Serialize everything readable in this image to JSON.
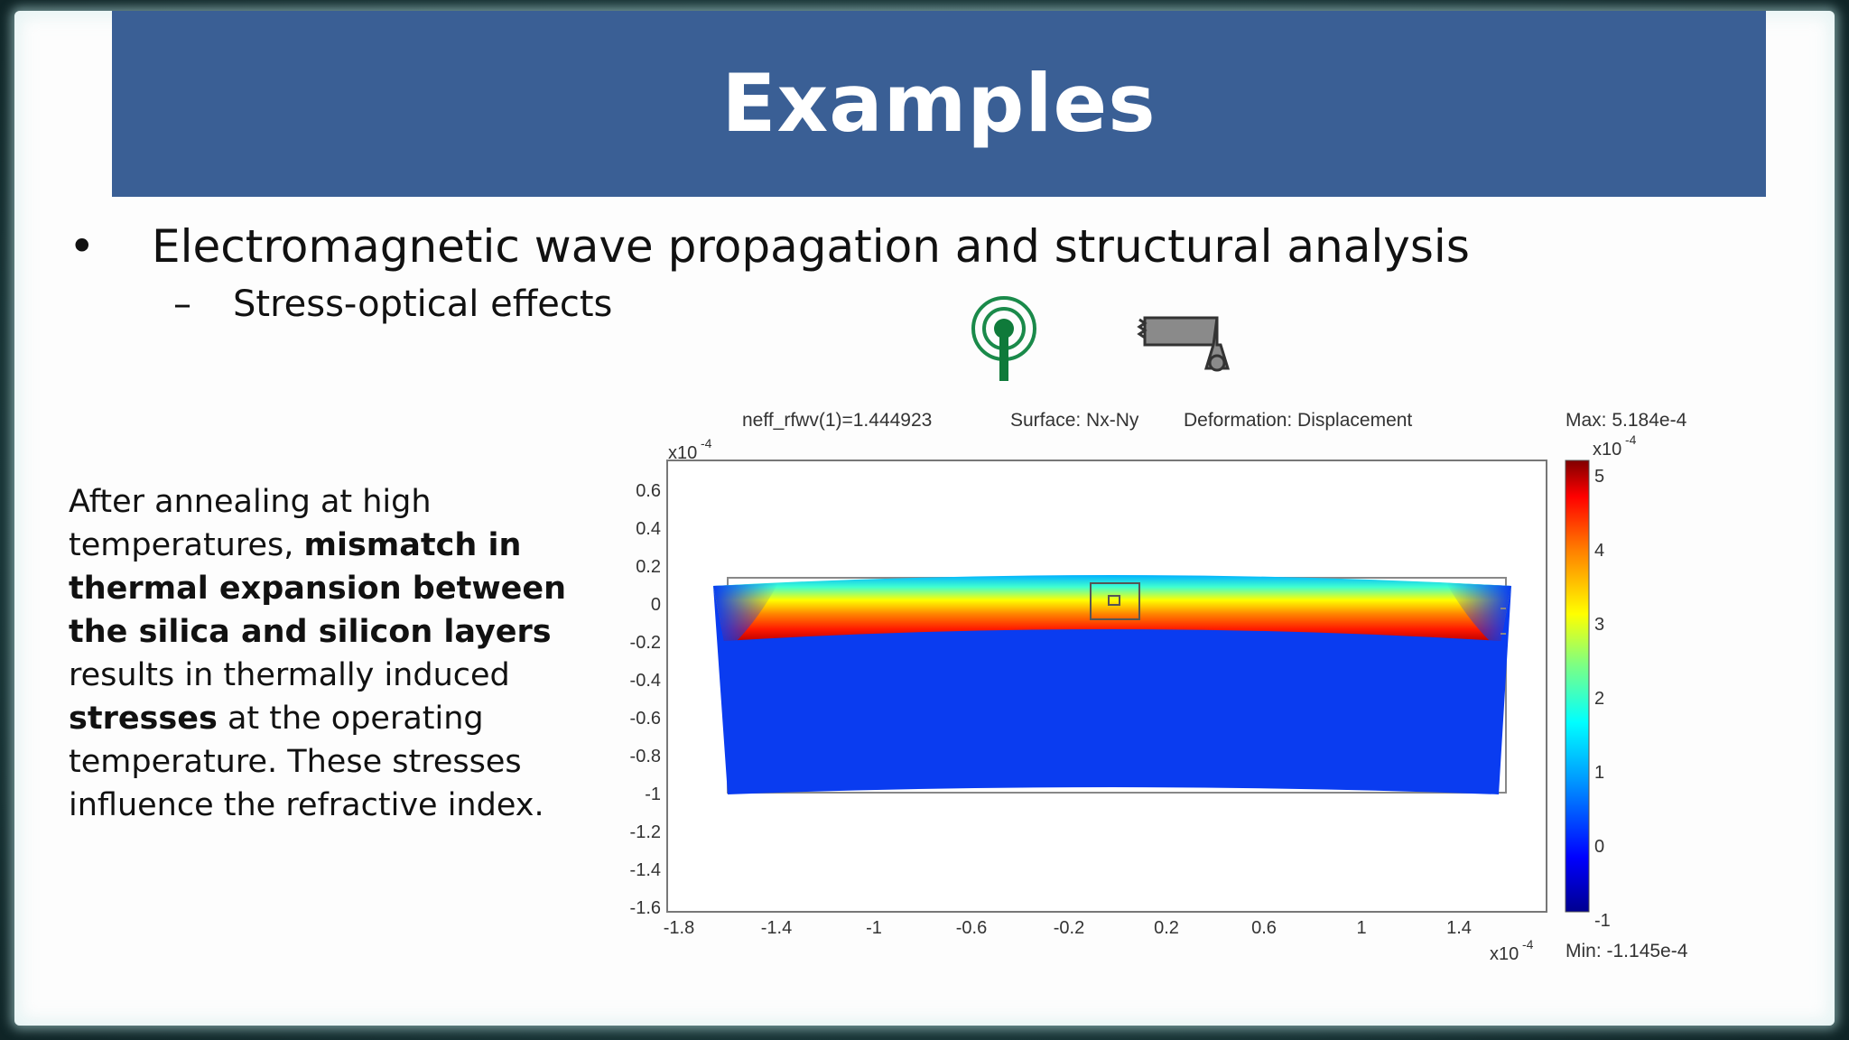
{
  "slide": {
    "title": "Examples",
    "bullet": "Electromagnetic wave propagation and structural analysis",
    "sub_bullet": "Stress-optical effects",
    "body": [
      {
        "text": "After annealing at high temperatures, ",
        "bold": false
      },
      {
        "text": "mismatch in thermal expansion between the silica and silicon layers",
        "bold": true
      },
      {
        "text": " results in thermally induced ",
        "bold": false
      },
      {
        "text": "stresses",
        "bold": true
      },
      {
        "text": " at the operating temperature. These stresses influence the refractive index.",
        "bold": false
      }
    ]
  },
  "plot": {
    "icons": [
      "antenna-icon",
      "cantilever-beam-icon"
    ],
    "header_left": "neff_rfwv(1)=1.444923",
    "header_mid": "Surface: Nx-Ny",
    "header_right": "Deformation: Displacement",
    "max_label": "Max: 5.184e-4",
    "min_label": "Min: -1.145e-4",
    "x_exponent": "x10",
    "y_exponent": "x10",
    "cbar_exponent": "x10",
    "exponent_power": "-4",
    "x_ticks": [
      "-1.8",
      "-1.4",
      "-1",
      "-0.6",
      "-0.2",
      "0.2",
      "0.6",
      "1",
      "1.4"
    ],
    "y_ticks": [
      "0.6",
      "0.4",
      "0.2",
      "0",
      "-0.2",
      "-0.4",
      "-0.6",
      "-0.8",
      "-1",
      "-1.2",
      "-1.4",
      "-1.6"
    ],
    "cbar_ticks": [
      "5",
      "4",
      "3",
      "2",
      "1",
      "0",
      "-1"
    ],
    "colors": {
      "field_blue": "#0a3cf0",
      "colormap": [
        "#00008f",
        "#0000ff",
        "#00a0ff",
        "#00ffff",
        "#80ff80",
        "#ffff00",
        "#ff8000",
        "#ff0000",
        "#800000"
      ]
    }
  }
}
